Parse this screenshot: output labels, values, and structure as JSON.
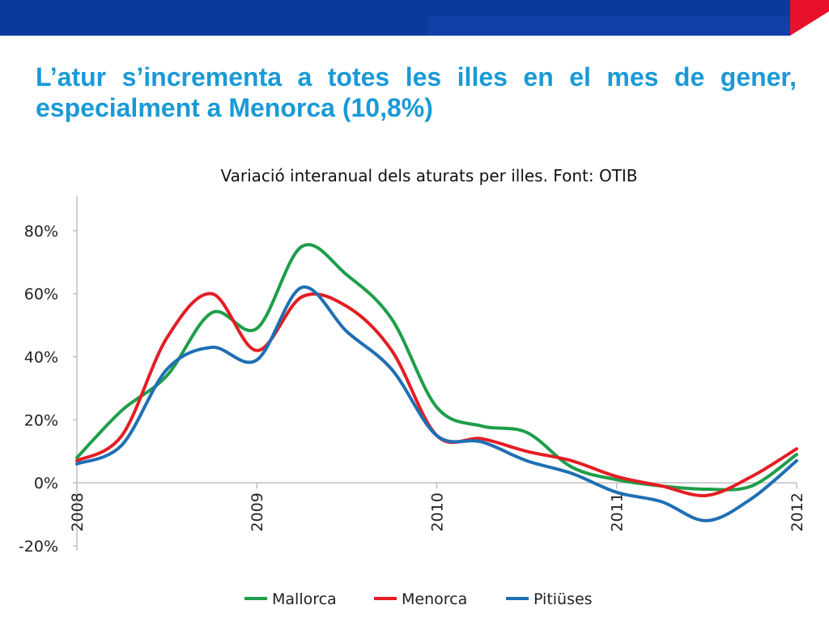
{
  "slide": {
    "title": "L’atur s’incrementa a totes les illes en el mes de gener, especialment a Menorca (10,8%)"
  },
  "colors": {
    "banner_blue": "#0a3a9c",
    "banner_red": "#e8102a",
    "title_blue": "#1a9ad6"
  },
  "chart_data": {
    "type": "line",
    "title": "Variació interanual dels aturats per illes. Font: OTIB",
    "xlabel": "",
    "ylabel": "",
    "xlim": [
      2008,
      2012
    ],
    "ylim": [
      -0.2,
      0.9
    ],
    "yticks": [
      -0.2,
      0,
      0.2,
      0.4,
      0.6,
      0.8
    ],
    "ytick_labels": [
      "-20%",
      "0%",
      "20%",
      "40%",
      "60%",
      "80%"
    ],
    "xticks": [
      2008,
      2009,
      2010,
      2011,
      2012
    ],
    "xtick_labels": [
      "2008",
      "2009",
      "2010",
      "2011",
      "2012"
    ],
    "grid": false,
    "legend_position": "bottom",
    "x": [
      2008.0,
      2008.25,
      2008.5,
      2008.75,
      2009.0,
      2009.25,
      2009.5,
      2009.75,
      2010.0,
      2010.25,
      2010.5,
      2010.75,
      2011.0,
      2011.25,
      2011.5,
      2011.75,
      2012.0
    ],
    "series": [
      {
        "name": "Mallorca",
        "color": "#1e9e4a",
        "values": [
          0.08,
          0.23,
          0.34,
          0.54,
          0.49,
          0.75,
          0.66,
          0.52,
          0.24,
          0.18,
          0.16,
          0.05,
          0.01,
          -0.01,
          -0.02,
          -0.01,
          0.09
        ]
      },
      {
        "name": "Menorca",
        "color": "#e31e24",
        "values": [
          0.07,
          0.15,
          0.46,
          0.6,
          0.42,
          0.59,
          0.56,
          0.42,
          0.15,
          0.14,
          0.1,
          0.07,
          0.02,
          -0.01,
          -0.04,
          0.02,
          0.108
        ]
      },
      {
        "name": "Pitiüses",
        "color": "#1f6fb4",
        "values": [
          0.06,
          0.12,
          0.36,
          0.43,
          0.39,
          0.62,
          0.48,
          0.36,
          0.15,
          0.13,
          0.07,
          0.03,
          -0.03,
          -0.06,
          -0.12,
          -0.05,
          0.07
        ]
      }
    ]
  }
}
